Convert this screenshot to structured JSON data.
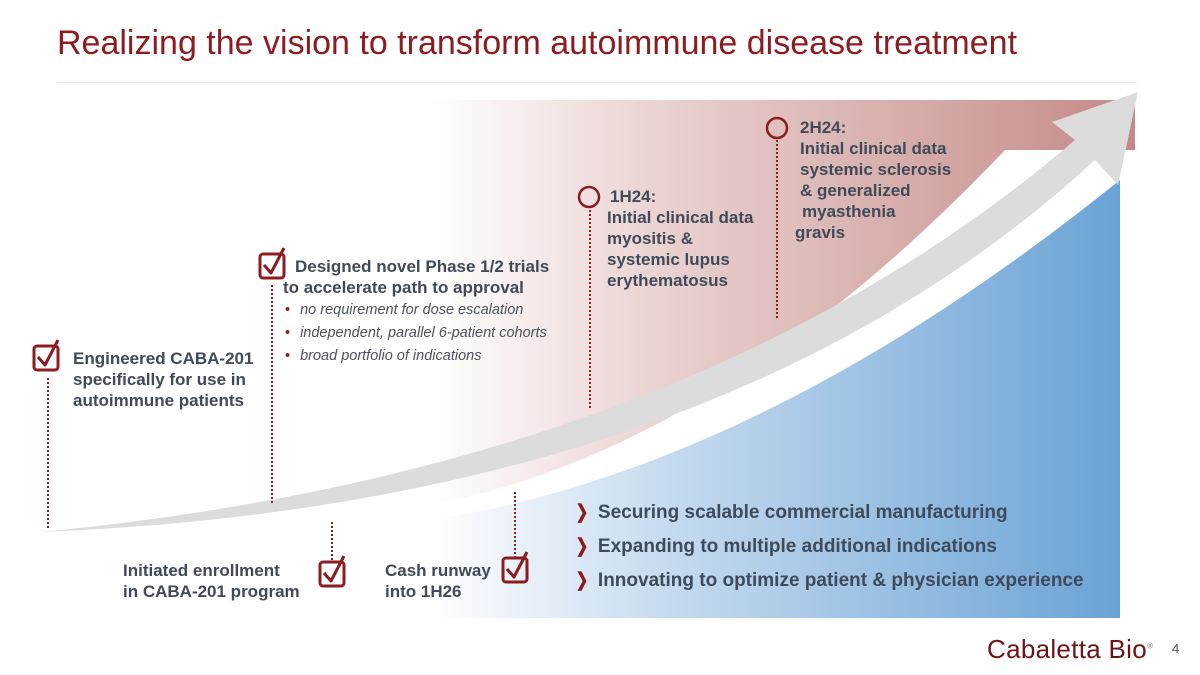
{
  "title": "Realizing the vision to transform autoimmune disease treatment",
  "colors": {
    "accent": "#8c1c1f",
    "text": "#3f4a5a",
    "red_zone": "#c48a88",
    "blue_zone": "#6aa3d5",
    "arrow": "#dcdcdc"
  },
  "completed": [
    {
      "icon": "checkbox-checked-icon",
      "lines": [
        "Engineered CABA-201",
        "specifically for use in",
        "autoimmune patients"
      ]
    },
    {
      "icon": "checkbox-checked-icon",
      "lines": [
        "Designed novel Phase 1/2 trials",
        "to accelerate path to approval"
      ],
      "bullets": [
        "no requirement for dose escalation",
        "independent, parallel 6-patient cohorts",
        "broad portfolio of indications"
      ]
    },
    {
      "icon": "checkbox-checked-icon",
      "lines": [
        "Initiated enrollment",
        "in CABA-201 program"
      ]
    },
    {
      "icon": "checkbox-checked-icon",
      "lines": [
        "Cash runway",
        "into 1H26"
      ]
    }
  ],
  "upcoming": [
    {
      "icon": "circle-icon",
      "lines": [
        "1H24:",
        "Initial clinical data",
        "myositis &",
        "systemic lupus",
        "erythematosus"
      ]
    },
    {
      "icon": "circle-icon",
      "lines": [
        "2H24:",
        "Initial clinical data",
        "systemic sclerosis",
        "& generalized",
        "myasthenia",
        "gravis"
      ]
    }
  ],
  "priorities": [
    "Securing scalable commercial manufacturing",
    "Expanding to multiple additional indications",
    "Innovating to optimize patient & physician experience"
  ],
  "logo": "Cabaletta Bio",
  "page_number": "4"
}
